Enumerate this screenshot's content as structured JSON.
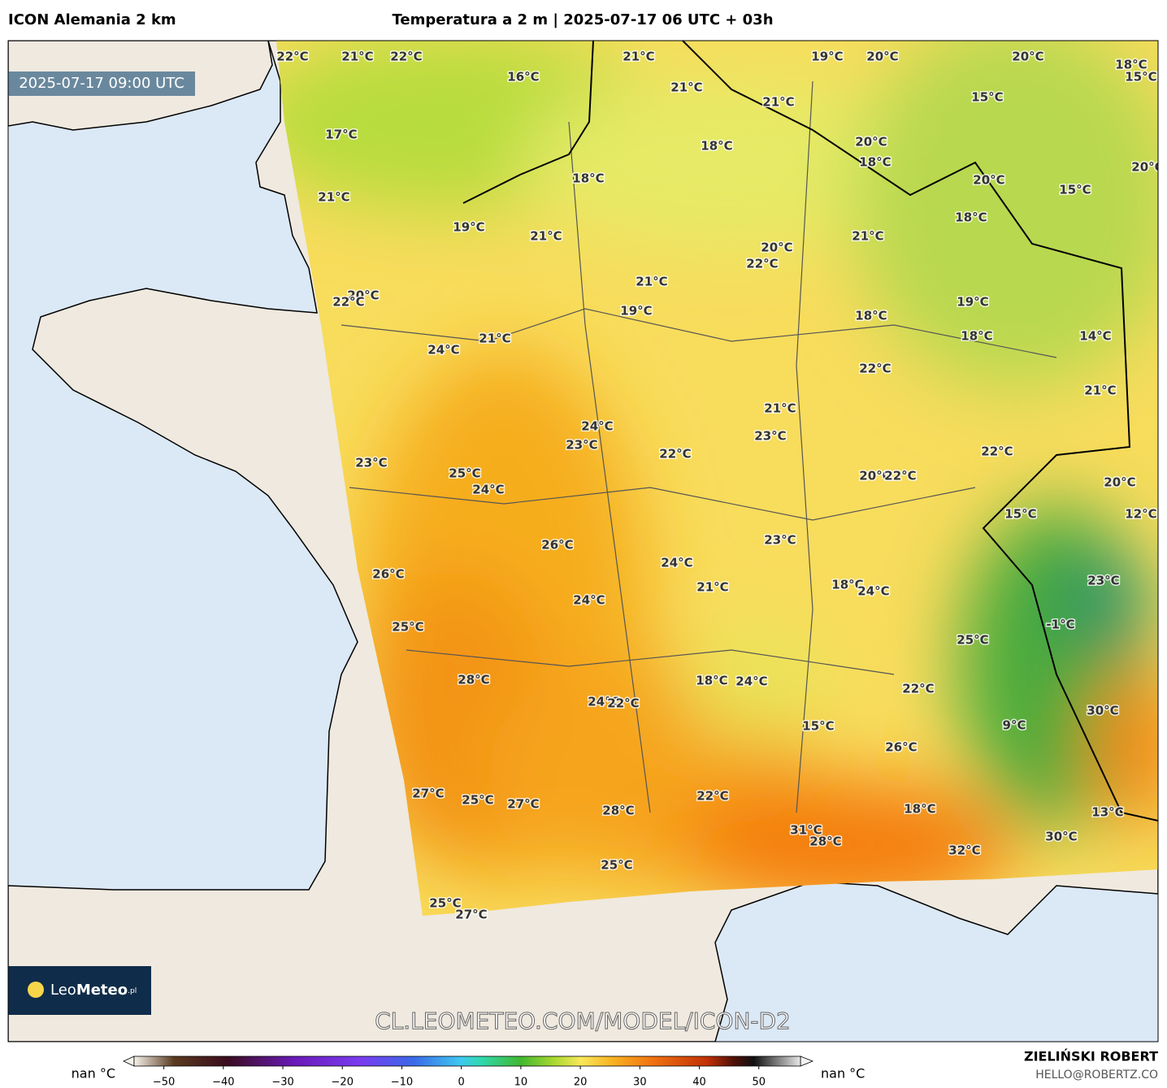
{
  "header": {
    "model": "ICON Alemania 2 km",
    "title": "Temperatura a 2 m | 2025-07-17 06 UTC + 03h"
  },
  "valid_time": "2025-07-17 09:00 UTC",
  "logo": {
    "light": "Leo",
    "bold": "Meteo",
    "suffix": ".pl"
  },
  "watermark": "CL.LEOMETEO.COM/MODEL/ICON-D2",
  "labels": [
    "22°C",
    "21°C",
    "22°C",
    "21°C",
    "19°C",
    "20°C",
    "20°C",
    "18°C",
    "15°C",
    "16°C",
    "21°C",
    "15°C",
    "21°C",
    "17°C",
    "20°C",
    "18°C",
    "18°C",
    "20°C",
    "18°C",
    "20°C",
    "15°C",
    "21°C",
    "18°C",
    "19°C",
    "21°C",
    "21°C",
    "20°C",
    "22°C",
    "21°C",
    "20°C",
    "22°C",
    "19°C",
    "19°C",
    "18°C",
    "21°C",
    "18°C",
    "14°C",
    "24°C",
    "22°C",
    "21°C",
    "21°C",
    "24°C",
    "23°C",
    "23°C",
    "22°C",
    "22°C",
    "23°C",
    "25°C",
    "20°C",
    "22°C",
    "24°C",
    "20°C",
    "15°C",
    "12°C",
    "26°C",
    "23°C",
    "24°C",
    "26°C",
    "23°C",
    "18°C",
    "21°C",
    "24°C",
    "24°C",
    "25°C",
    "-1°C",
    "25°C",
    "28°C",
    "18°C",
    "24°C",
    "22°C",
    "24°C",
    "22°C",
    "30°C",
    "15°C",
    "9°C",
    "26°C",
    "27°C",
    "22°C",
    "25°C",
    "27°C",
    "18°C",
    "28°C",
    "13°C",
    "31°C",
    "28°C",
    "30°C",
    "32°C",
    "25°C",
    "25°C",
    "27°C"
  ],
  "colorbar": {
    "range": [
      -55,
      57
    ],
    "under": "nan °C",
    "over": "nan °C",
    "ticks": [
      {
        "value": -50,
        "label": "−50"
      },
      {
        "value": -40,
        "label": "−40"
      },
      {
        "value": -30,
        "label": "−30"
      },
      {
        "value": -20,
        "label": "−20"
      },
      {
        "value": -10,
        "label": "−10"
      },
      0,
      10,
      20,
      30,
      40,
      50
    ]
  },
  "credit": {
    "author": "ZIELIŃSKI ROBERT",
    "email": "HELLO@ROBERTZ.CO"
  }
}
